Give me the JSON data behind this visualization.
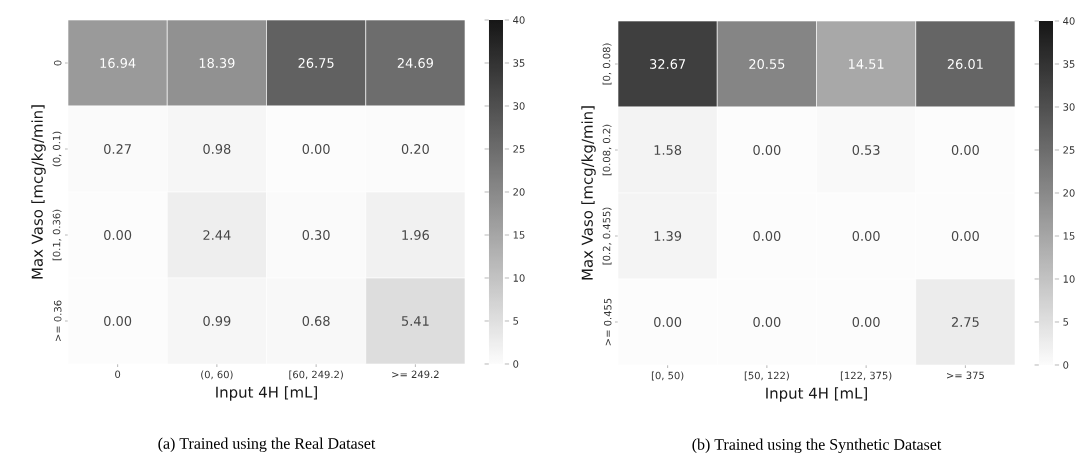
{
  "chart_data": [
    {
      "type": "heatmap",
      "title": "(a) Trained using the Real Dataset",
      "xlabel": "Input 4H [mL]",
      "ylabel": "Max Vaso [mcg/kg/min]",
      "categories": [
        "0",
        "(0, 60)",
        "[60, 249.2)",
        ">= 249.2"
      ],
      "y_categories": [
        "0",
        "(0, 0.1)",
        "[0.1, 0.36)",
        ">= 0.36"
      ],
      "cells": [
        [
          16.94,
          18.39,
          26.75,
          24.69
        ],
        [
          0.27,
          0.98,
          0.0,
          0.2
        ],
        [
          0.0,
          2.44,
          0.3,
          1.96
        ],
        [
          0.0,
          0.99,
          0.68,
          5.41
        ]
      ],
      "cell_labels": [
        [
          "16.94",
          "18.39",
          "26.75",
          "24.69"
        ],
        [
          "0.27",
          "0.98",
          "0.00",
          "0.20"
        ],
        [
          "0.00",
          "2.44",
          "0.30",
          "1.96"
        ],
        [
          "0.00",
          "0.99",
          "0.68",
          "5.41"
        ]
      ],
      "clim": [
        0,
        40
      ],
      "cticks": [
        0,
        5,
        10,
        15,
        20,
        25,
        30,
        35,
        40
      ]
    },
    {
      "type": "heatmap",
      "title": "(b) Trained using the Synthetic Dataset",
      "xlabel": "Input 4H [mL]",
      "ylabel": "Max Vaso [mcg/kg/min]",
      "categories": [
        "[0, 50)",
        "[50, 122)",
        "[122, 375)",
        ">= 375"
      ],
      "y_categories": [
        "[0, 0.08)",
        "[0.08, 0.2)",
        "[0.2, 0.455)",
        ">= 0.455"
      ],
      "cells": [
        [
          32.67,
          20.55,
          14.51,
          26.01
        ],
        [
          1.58,
          0.0,
          0.53,
          0.0
        ],
        [
          1.39,
          0.0,
          0.0,
          0.0
        ],
        [
          0.0,
          0.0,
          0.0,
          2.75
        ]
      ],
      "cell_labels": [
        [
          "32.67",
          "20.55",
          "14.51",
          "26.01"
        ],
        [
          "1.58",
          "0.00",
          "0.53",
          "0.00"
        ],
        [
          "1.39",
          "0.00",
          "0.00",
          "0.00"
        ],
        [
          "0.00",
          "0.00",
          "0.00",
          "2.75"
        ]
      ],
      "clim": [
        0,
        40
      ],
      "cticks": [
        0,
        5,
        10,
        15,
        20,
        25,
        30,
        35,
        40
      ]
    }
  ]
}
